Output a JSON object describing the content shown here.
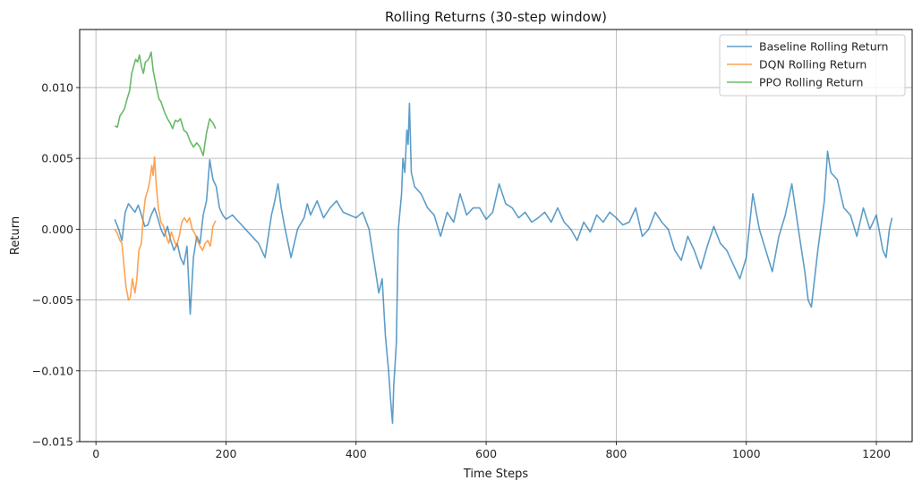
{
  "chart_data": {
    "type": "line",
    "title": "Rolling Returns (30-step window)",
    "xlabel": "Time Steps",
    "ylabel": "Return",
    "xlim": [
      -25,
      1255
    ],
    "ylim": [
      -0.015,
      0.0141
    ],
    "xticks": [
      0,
      200,
      400,
      600,
      800,
      1000,
      1200
    ],
    "xtick_labels": [
      "0",
      "200",
      "400",
      "600",
      "800",
      "1000",
      "1200"
    ],
    "yticks": [
      -0.015,
      -0.01,
      -0.005,
      0.0,
      0.005,
      0.01
    ],
    "ytick_labels": [
      "−0.015",
      "−0.010",
      "−0.005",
      "0.000",
      "0.005",
      "0.010"
    ],
    "grid": true,
    "legend_position": "upper right",
    "series": [
      {
        "name": "Baseline Rolling Return",
        "color": "#1f77b4",
        "x": [
          29,
          35,
          40,
          45,
          50,
          55,
          60,
          65,
          70,
          75,
          80,
          85,
          90,
          95,
          100,
          105,
          110,
          115,
          120,
          125,
          130,
          135,
          140,
          145,
          150,
          155,
          160,
          165,
          170,
          175,
          180,
          185,
          190,
          195,
          200,
          210,
          220,
          230,
          240,
          250,
          260,
          270,
          275,
          280,
          285,
          290,
          300,
          310,
          320,
          325,
          330,
          340,
          350,
          360,
          370,
          380,
          390,
          400,
          410,
          420,
          430,
          435,
          440,
          445,
          450,
          453,
          456,
          458,
          460,
          462,
          465,
          470,
          472,
          475,
          478,
          480,
          482,
          485,
          490,
          500,
          510,
          520,
          530,
          540,
          550,
          560,
          570,
          580,
          590,
          600,
          610,
          620,
          630,
          640,
          650,
          660,
          670,
          680,
          690,
          700,
          710,
          720,
          730,
          740,
          750,
          760,
          770,
          780,
          790,
          800,
          810,
          820,
          830,
          840,
          850,
          860,
          870,
          880,
          890,
          900,
          910,
          920,
          930,
          940,
          950,
          960,
          970,
          980,
          990,
          1000,
          1010,
          1020,
          1030,
          1040,
          1050,
          1060,
          1070,
          1080,
          1090,
          1095,
          1100,
          1110,
          1120,
          1125,
          1130,
          1140,
          1150,
          1160,
          1170,
          1180,
          1190,
          1200,
          1210,
          1215,
          1220,
          1224
        ],
        "y": [
          0.0007,
          0.0,
          -0.0008,
          0.0012,
          0.0018,
          0.0015,
          0.0012,
          0.0017,
          0.001,
          0.0002,
          0.0003,
          0.001,
          0.0015,
          0.0008,
          0.0,
          -0.0005,
          0.0002,
          -0.0008,
          -0.0015,
          -0.001,
          -0.002,
          -0.0025,
          -0.0012,
          -0.006,
          -0.002,
          -0.0005,
          -0.001,
          0.001,
          0.002,
          0.0049,
          0.0035,
          0.003,
          0.0015,
          0.001,
          0.0007,
          0.001,
          0.0005,
          0.0,
          -0.0005,
          -0.001,
          -0.002,
          0.001,
          0.002,
          0.0032,
          0.0015,
          0.0002,
          -0.002,
          0.0,
          0.0008,
          0.0018,
          0.001,
          0.002,
          0.0008,
          0.0015,
          0.002,
          0.0012,
          0.001,
          0.0008,
          0.0012,
          0.0,
          -0.003,
          -0.0045,
          -0.0035,
          -0.0075,
          -0.01,
          -0.012,
          -0.0137,
          -0.011,
          -0.0095,
          -0.008,
          0.0,
          0.0025,
          0.005,
          0.004,
          0.007,
          0.006,
          0.0089,
          0.004,
          0.003,
          0.0025,
          0.0015,
          0.001,
          -0.0005,
          0.0012,
          0.0005,
          0.0025,
          0.001,
          0.0015,
          0.0015,
          0.0007,
          0.0012,
          0.0032,
          0.0018,
          0.0015,
          0.0008,
          0.0012,
          0.0005,
          0.0008,
          0.0012,
          0.0005,
          0.0015,
          0.0005,
          0.0,
          -0.0008,
          0.0005,
          -0.0002,
          0.001,
          0.0005,
          0.0012,
          0.0008,
          0.0003,
          0.0005,
          0.0015,
          -0.0005,
          0.0,
          0.0012,
          0.0005,
          0.0,
          -0.0015,
          -0.0022,
          -0.0005,
          -0.0015,
          -0.0028,
          -0.0012,
          0.0002,
          -0.001,
          -0.0015,
          -0.0025,
          -0.0035,
          -0.002,
          0.0025,
          0.0,
          -0.0015,
          -0.003,
          -0.0005,
          0.001,
          0.0032,
          0.0,
          -0.003,
          -0.005,
          -0.0055,
          -0.0015,
          0.002,
          0.0055,
          0.004,
          0.0035,
          0.0015,
          0.001,
          -0.0005,
          0.0015,
          0.0,
          0.001,
          -0.0015,
          -0.002,
          0.0,
          0.0008
        ]
      },
      {
        "name": "DQN Rolling Return",
        "color": "#ff7f0e",
        "x": [
          29,
          33,
          37,
          40,
          43,
          46,
          50,
          53,
          56,
          60,
          63,
          66,
          70,
          73,
          76,
          80,
          83,
          86,
          88,
          90,
          93,
          96,
          100,
          104,
          108,
          112,
          116,
          120,
          124,
          128,
          132,
          136,
          140,
          144,
          148,
          152,
          156,
          160,
          164,
          168,
          172,
          176,
          180,
          184
        ],
        "y": [
          0.0,
          -0.0003,
          -0.0008,
          -0.001,
          -0.0025,
          -0.004,
          -0.005,
          -0.0048,
          -0.0035,
          -0.0045,
          -0.0035,
          -0.0015,
          -0.001,
          0.001,
          0.0022,
          0.0028,
          0.0035,
          0.0045,
          0.0038,
          0.0051,
          0.003,
          0.0015,
          0.0005,
          0.0002,
          -0.0005,
          -0.001,
          -0.0002,
          -0.0008,
          -0.0012,
          -0.0005,
          0.0005,
          0.0008,
          0.0005,
          0.0008,
          0.0,
          -0.0003,
          -0.0008,
          -0.0012,
          -0.0015,
          -0.001,
          -0.0008,
          -0.0012,
          0.0002,
          0.0006
        ]
      },
      {
        "name": "PPO Rolling Return",
        "color": "#2ca02c",
        "x": [
          29,
          33,
          37,
          40,
          44,
          48,
          52,
          55,
          58,
          61,
          64,
          67,
          70,
          73,
          76,
          79,
          82,
          85,
          88,
          91,
          94,
          97,
          100,
          103,
          106,
          110,
          114,
          118,
          122,
          126,
          130,
          135,
          140,
          145,
          150,
          155,
          160,
          165,
          170,
          175,
          180,
          184
        ],
        "y": [
          0.0073,
          0.0072,
          0.008,
          0.0082,
          0.0085,
          0.0092,
          0.0098,
          0.011,
          0.0115,
          0.012,
          0.0118,
          0.0123,
          0.0115,
          0.011,
          0.0118,
          0.0119,
          0.0121,
          0.0125,
          0.0112,
          0.0105,
          0.0098,
          0.0092,
          0.009,
          0.0086,
          0.0082,
          0.0078,
          0.0075,
          0.0071,
          0.0077,
          0.0076,
          0.0078,
          0.007,
          0.0068,
          0.0062,
          0.0058,
          0.0061,
          0.0058,
          0.0052,
          0.0068,
          0.0078,
          0.0075,
          0.0071
        ]
      }
    ]
  }
}
